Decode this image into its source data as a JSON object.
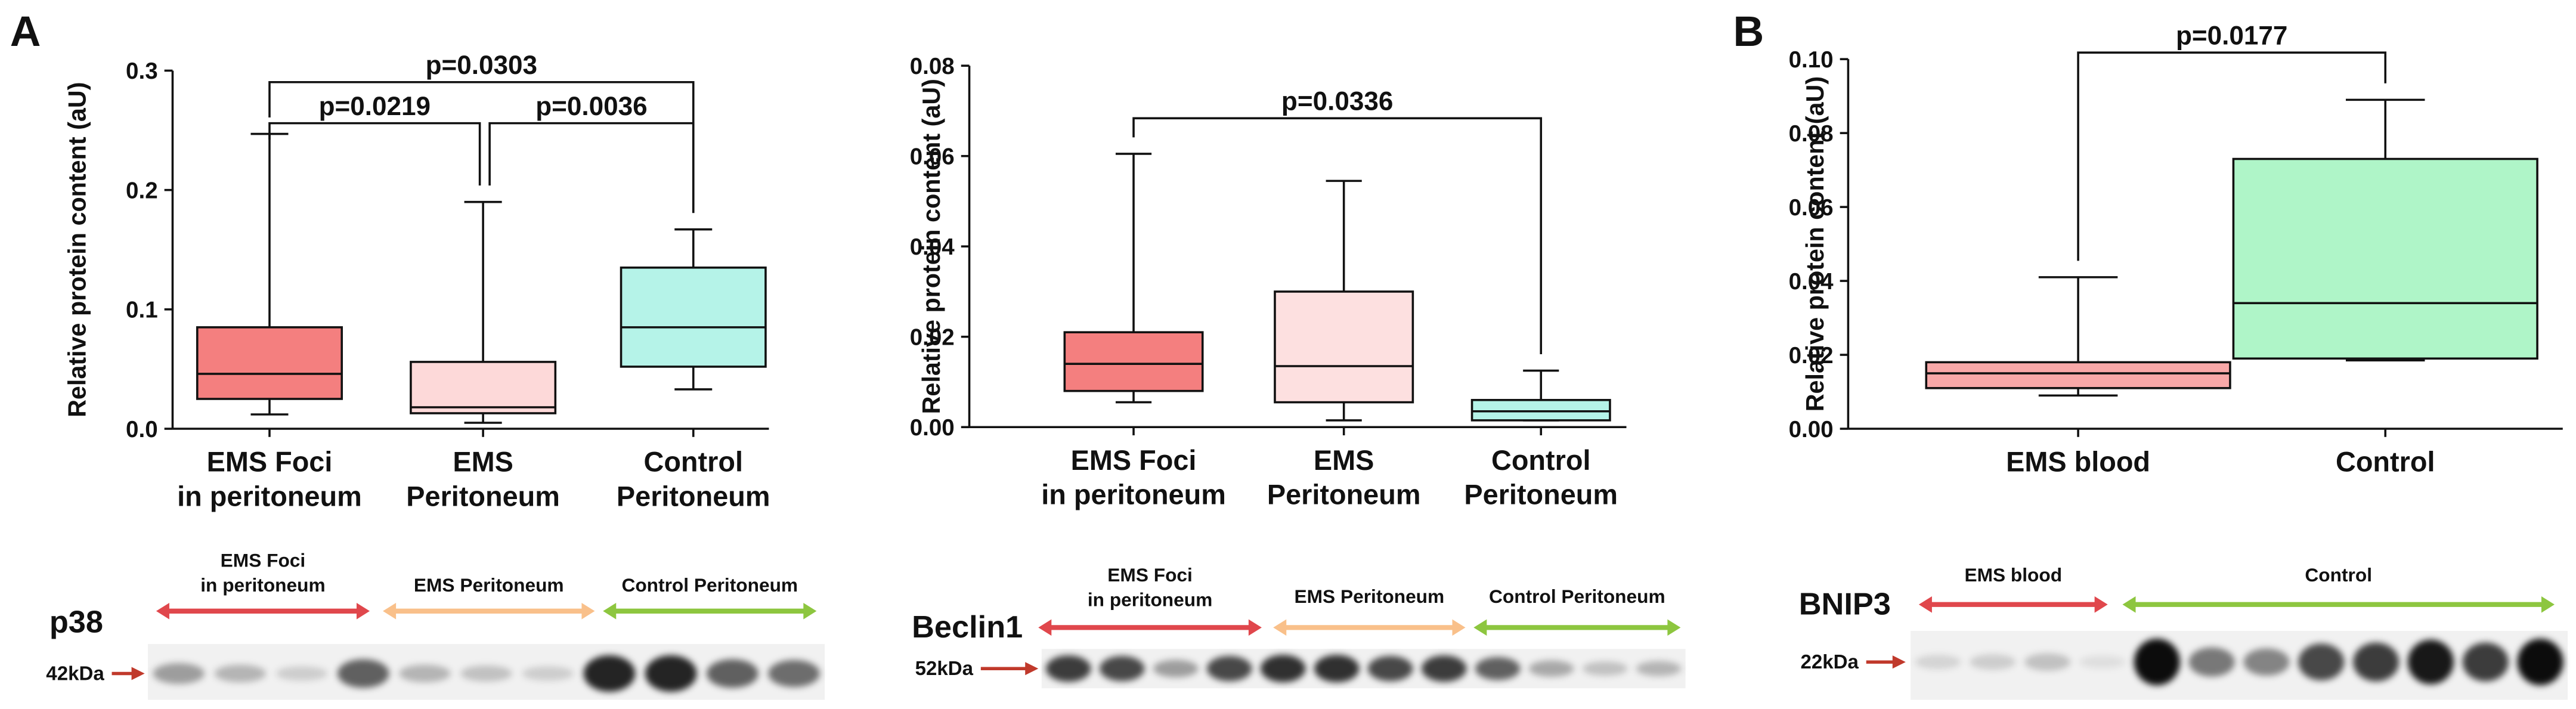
{
  "panels": [
    "A",
    "B"
  ],
  "chart_data": [
    {
      "type": "box",
      "ylabel": "Relative protein content (aU)",
      "categories": [
        [
          "EMS Foci",
          "in peritoneum"
        ],
        [
          "EMS",
          "Peritoneum"
        ],
        [
          "Control",
          "Peritoneum"
        ]
      ],
      "boxes": [
        {
          "min": 0.012,
          "q1": 0.025,
          "median": 0.046,
          "q3": 0.085,
          "max": 0.247,
          "color": "#f47f7f"
        },
        {
          "min": 0.005,
          "q1": 0.013,
          "median": 0.018,
          "q3": 0.056,
          "max": 0.19,
          "color": "#fdd9d9"
        },
        {
          "min": 0.033,
          "q1": 0.052,
          "median": 0.085,
          "q3": 0.135,
          "max": 0.167,
          "color": "#b5f3e8"
        }
      ],
      "ylim": [
        0,
        0.3
      ],
      "yticks": [
        {
          "value": 0,
          "label": "0.0"
        },
        0.1,
        0.2,
        0.3
      ],
      "comparisons": [
        {
          "from": 0,
          "to": 2,
          "label": "p=0.0303"
        },
        {
          "from": 0,
          "to": 1,
          "label": "p=0.0219"
        },
        {
          "from": 1,
          "to": 2,
          "label": "p=0.0036"
        }
      ]
    },
    {
      "type": "box",
      "ylabel": "Relative protein content (aU)",
      "categories": [
        [
          "EMS Foci",
          "in peritoneum"
        ],
        [
          "EMS",
          "Peritoneum"
        ],
        [
          "Control",
          "Peritoneum"
        ]
      ],
      "boxes": [
        {
          "min": 0.0055,
          "q1": 0.008,
          "median": 0.014,
          "q3": 0.021,
          "max": 0.0605,
          "color": "#f47f7f"
        },
        {
          "min": 0.0015,
          "q1": 0.0055,
          "median": 0.0135,
          "q3": 0.03,
          "max": 0.0545,
          "color": "#fde0e0"
        },
        {
          "min": 0.0015,
          "q1": 0.0015,
          "median": 0.0035,
          "q3": 0.006,
          "max": 0.0125,
          "color": "#b5f3e8"
        }
      ],
      "ylim": [
        0,
        0.08
      ],
      "yticks": [
        {
          "value": 0,
          "label": "0.00"
        },
        {
          "value": 0.02,
          "label": "0.02"
        },
        {
          "value": 0.04,
          "label": "0.04"
        },
        {
          "value": 0.06,
          "label": "0.06"
        },
        {
          "value": 0.08,
          "label": "0.08"
        }
      ],
      "comparisons": [
        {
          "from": 0,
          "to": 2,
          "label": "p=0.0336"
        }
      ]
    },
    {
      "type": "box",
      "ylabel": "Relative protein content (aU)",
      "categories": [
        [
          "EMS blood"
        ],
        [
          "Control"
        ]
      ],
      "boxes": [
        {
          "min": 0.009,
          "q1": 0.011,
          "median": 0.015,
          "q3": 0.018,
          "max": 0.041,
          "color": "#f8a8a8"
        },
        {
          "min": 0.0185,
          "q1": 0.019,
          "median": 0.034,
          "q3": 0.073,
          "max": 0.089,
          "color": "#aff5c8"
        }
      ],
      "ylim": [
        0,
        0.1
      ],
      "yticks": [
        {
          "value": 0,
          "label": "0.00"
        },
        {
          "value": 0.02,
          "label": "0.02"
        },
        {
          "value": 0.04,
          "label": "0.04"
        },
        {
          "value": 0.06,
          "label": "0.06"
        },
        {
          "value": 0.08,
          "label": "0.08"
        },
        {
          "value": 0.1,
          "label": "0.10"
        }
      ],
      "comparisons": [
        {
          "from": 0,
          "to": 1,
          "label": "p=0.0177"
        }
      ]
    }
  ],
  "blots": [
    {
      "label": "p38",
      "size": "42kDa",
      "groups": [
        {
          "lines": [
            "EMS Foci",
            "in peritoneum"
          ],
          "color": "#e0474c"
        },
        {
          "lines": [
            "EMS Peritoneum"
          ],
          "color": "#f9c08a"
        },
        {
          "lines": [
            "Control Peritoneum"
          ],
          "color": "#8dc63f"
        }
      ]
    },
    {
      "label": "Beclin1",
      "size": "52kDa",
      "groups": [
        {
          "lines": [
            "EMS Foci",
            "in peritoneum"
          ],
          "color": "#e0474c"
        },
        {
          "lines": [
            "EMS Peritoneum"
          ],
          "color": "#f9c08a"
        },
        {
          "lines": [
            "Control Peritoneum"
          ],
          "color": "#8dc63f"
        }
      ]
    },
    {
      "label": "BNIP3",
      "size": "22kDa",
      "groups": [
        {
          "lines": [
            "EMS blood"
          ],
          "color": "#e0474c"
        },
        {
          "lines": [
            "Control"
          ],
          "color": "#8dc63f"
        }
      ]
    }
  ]
}
